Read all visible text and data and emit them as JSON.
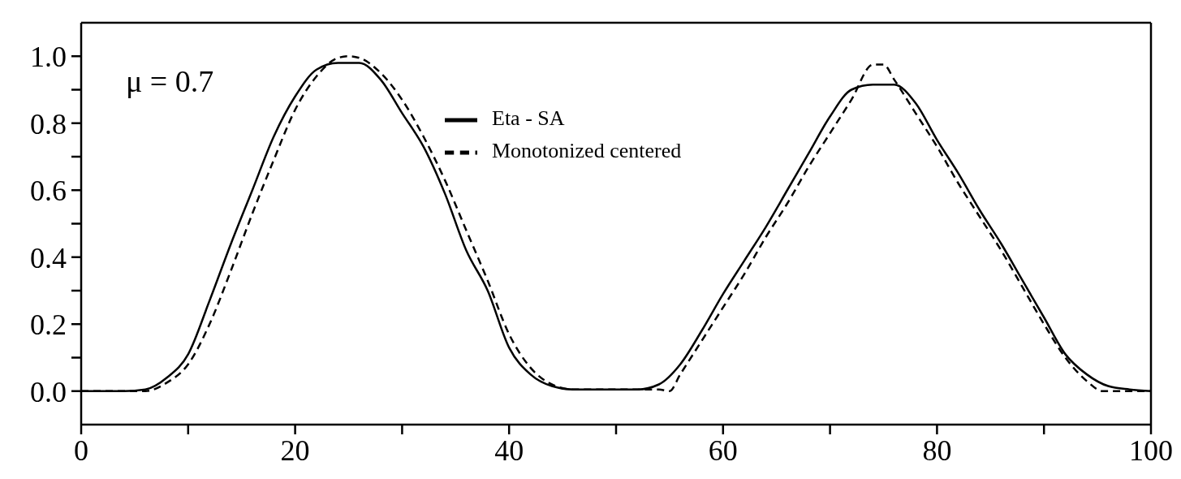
{
  "chart_data": {
    "type": "line",
    "annotations": [
      "μ = 0.7"
    ],
    "xlim": [
      0,
      100
    ],
    "xticks": [
      0,
      {
        "value": 10,
        "label": null
      },
      20,
      {
        "value": 30,
        "label": null
      },
      40,
      {
        "value": 50,
        "label": null
      },
      60,
      {
        "value": 70,
        "label": null
      },
      80,
      {
        "value": 90,
        "label": null
      },
      100
    ],
    "ylim": [
      -0.1,
      1.1
    ],
    "yticks": [
      {
        "value": 0,
        "label": "0.0"
      },
      {
        "value": 0.1,
        "label": null
      },
      0.2,
      {
        "value": 0.3,
        "label": null
      },
      0.4,
      {
        "value": 0.5,
        "label": null
      },
      0.6,
      {
        "value": 0.7,
        "label": null
      },
      0.8,
      {
        "value": 0.9,
        "label": null
      },
      {
        "value": 1,
        "label": "1.0"
      }
    ],
    "grid": false,
    "legend": "top",
    "marker": "none",
    "series": [
      {
        "name": "Eta - SA",
        "color": "#000000",
        "line_style": "solid",
        "x": [
          0,
          4,
          6,
          8,
          10,
          12,
          14,
          16,
          18,
          20,
          22,
          24,
          26,
          28,
          30,
          32,
          34,
          36,
          38,
          40,
          42,
          44,
          46,
          52,
          54,
          56,
          58,
          60,
          62,
          64,
          66,
          68,
          70,
          72,
          74,
          76,
          78,
          80,
          82,
          84,
          86,
          88,
          90,
          92,
          94,
          96,
          98,
          100
        ],
        "values": [
          0,
          0,
          0.005,
          0.04,
          0.11,
          0.27,
          0.44,
          0.6,
          0.76,
          0.88,
          0.96,
          0.98,
          0.98,
          0.93,
          0.83,
          0.73,
          0.59,
          0.42,
          0.3,
          0.13,
          0.05,
          0.015,
          0.005,
          0.005,
          0.02,
          0.08,
          0.18,
          0.29,
          0.39,
          0.49,
          0.6,
          0.71,
          0.82,
          0.9,
          0.915,
          0.915,
          0.86,
          0.75,
          0.65,
          0.54,
          0.44,
          0.33,
          0.22,
          0.11,
          0.05,
          0.015,
          0.005,
          0
        ]
      },
      {
        "name": "Monotonized centered",
        "color": "#000000",
        "line_style": "dashed",
        "x": [
          0,
          6,
          8,
          10,
          12,
          14,
          16,
          18,
          20,
          22,
          24,
          25,
          26,
          28,
          30,
          32,
          34,
          36,
          38,
          40,
          42,
          44,
          46,
          54,
          55,
          56,
          58,
          60,
          62,
          64,
          66,
          68,
          70,
          72,
          74,
          75,
          76,
          78,
          80,
          82,
          84,
          86,
          88,
          90,
          92,
          94,
          95.5,
          100
        ],
        "values": [
          0,
          0,
          0.025,
          0.08,
          0.2,
          0.36,
          0.53,
          0.69,
          0.84,
          0.94,
          0.995,
          1,
          0.995,
          0.95,
          0.87,
          0.76,
          0.63,
          0.48,
          0.33,
          0.17,
          0.07,
          0.02,
          0.005,
          0.005,
          0,
          0.05,
          0.15,
          0.25,
          0.35,
          0.46,
          0.56,
          0.67,
          0.77,
          0.87,
          0.975,
          0.975,
          0.93,
          0.83,
          0.73,
          0.62,
          0.52,
          0.42,
          0.31,
          0.2,
          0.1,
          0.03,
          0,
          0
        ]
      }
    ]
  }
}
